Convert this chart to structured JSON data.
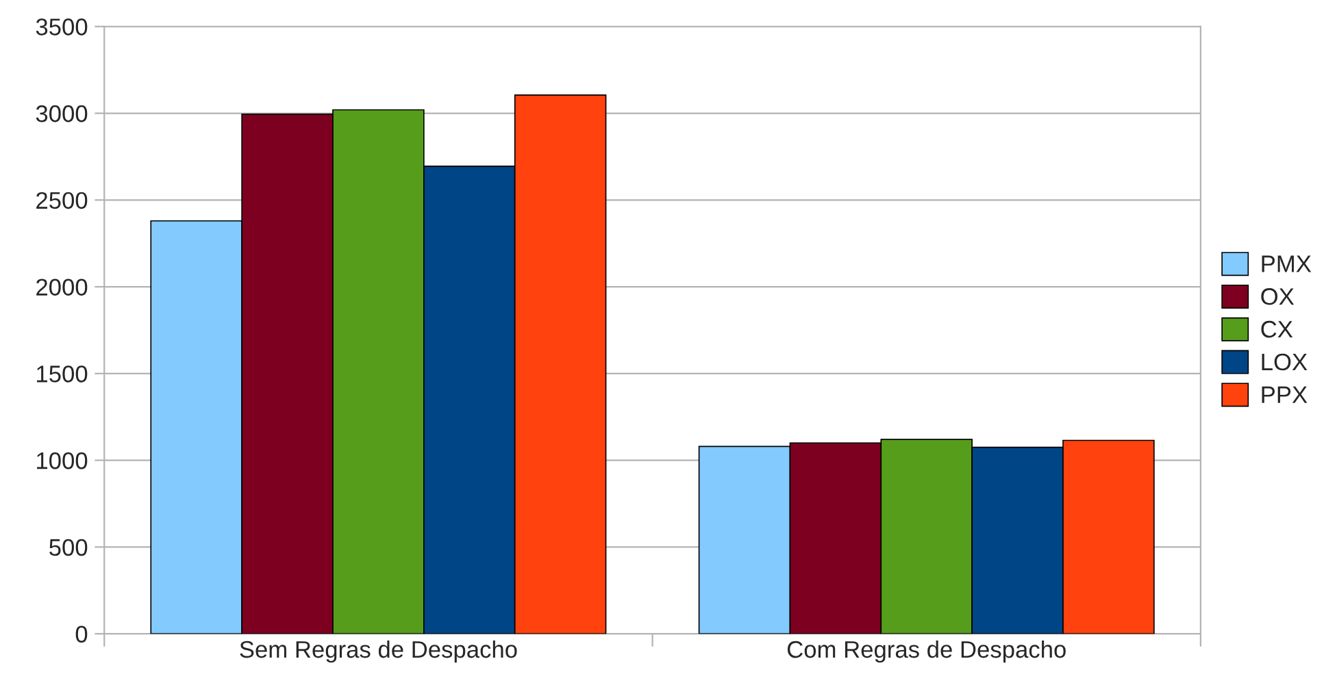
{
  "chart_data": {
    "type": "bar",
    "categories": [
      "Sem Regras de Despacho",
      "Com Regras de Despacho"
    ],
    "series": [
      {
        "name": "PMX",
        "color": "#83caff",
        "values": [
          2380,
          1080
        ]
      },
      {
        "name": "OX",
        "color": "#7e0021",
        "values": [
          2995,
          1100
        ]
      },
      {
        "name": "CX",
        "color": "#579d1c",
        "values": [
          3020,
          1120
        ]
      },
      {
        "name": "LOX",
        "color": "#004586",
        "values": [
          2695,
          1075
        ]
      },
      {
        "name": "PPX",
        "color": "#ff420e",
        "values": [
          3105,
          1115
        ]
      }
    ],
    "ylim": [
      0,
      3500
    ],
    "yticks": [
      0,
      500,
      1000,
      1500,
      2000,
      2500,
      3000,
      3500
    ],
    "grid": "y",
    "legend": "right"
  }
}
